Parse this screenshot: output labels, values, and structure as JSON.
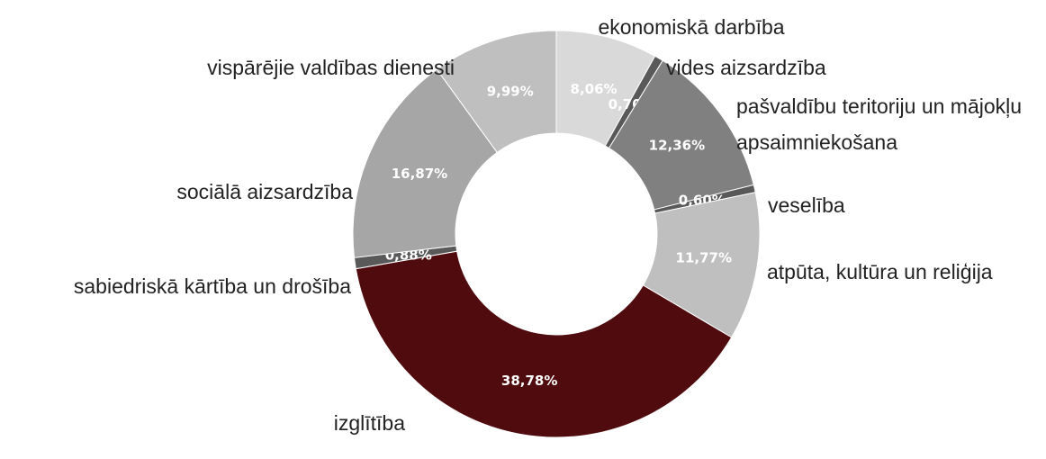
{
  "chart_data": {
    "type": "pie",
    "categories": [
      "ekonomiskā darbība",
      "vides aizsardzība",
      "pašvaldību teritoriju un mājokļu apsaimniekošana",
      "veselība",
      "atpūta, kultūra un reliģija",
      "izglītība",
      "sabiedriskā kārtība un drošība",
      "sociālā aizsardzība",
      "vispārējie valdības dienesti"
    ],
    "values": [
      8.06,
      0.7,
      12.36,
      0.6,
      11.77,
      38.78,
      0.88,
      16.87,
      9.99
    ],
    "value_labels": [
      "8,06%",
      "0,70%",
      "12,36%",
      "0,60%",
      "11,77%",
      "38,78%",
      "0,88%",
      "16,87%",
      "9,99%"
    ],
    "colors": [
      "#d9d9d9",
      "#595959",
      "#808080",
      "#595959",
      "#bfbfbf",
      "#4f0b0d",
      "#595959",
      "#a6a6a6",
      "#bfbfbf"
    ],
    "donut": true
  }
}
